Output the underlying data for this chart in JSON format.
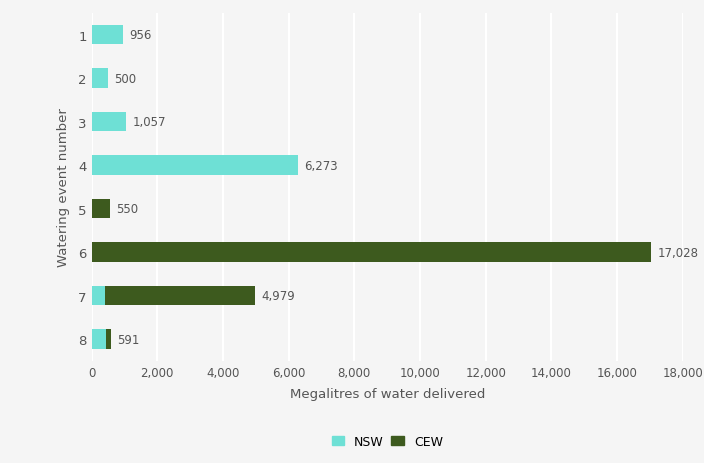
{
  "events": [
    "1",
    "2",
    "3",
    "4",
    "5",
    "6",
    "7",
    "8"
  ],
  "nsw_values": [
    956,
    500,
    1057,
    6273,
    0,
    0,
    400,
    450
  ],
  "cew_values": [
    0,
    0,
    0,
    0,
    550,
    17028,
    4579,
    141
  ],
  "labels": [
    "956",
    "500",
    "1,057",
    "6,273",
    "550",
    "17,028",
    "4,979",
    "591"
  ],
  "nsw_color": "#6ee0d5",
  "cew_color": "#3d5a1e",
  "xlabel": "Megalitres of water delivered",
  "ylabel": "Watering event number",
  "background_color": "#f5f5f5",
  "grid_color": "#ffffff",
  "xlim": [
    0,
    18000
  ],
  "xticks": [
    0,
    2000,
    4000,
    6000,
    8000,
    10000,
    12000,
    14000,
    16000,
    18000
  ],
  "xtick_labels": [
    "0",
    "2,000",
    "4,000",
    "6,000",
    "8,000",
    "10,000",
    "12,000",
    "14,000",
    "16,000",
    "18,000"
  ],
  "legend_nsw": "NSW",
  "legend_cew": "CEW",
  "bar_height": 0.45
}
